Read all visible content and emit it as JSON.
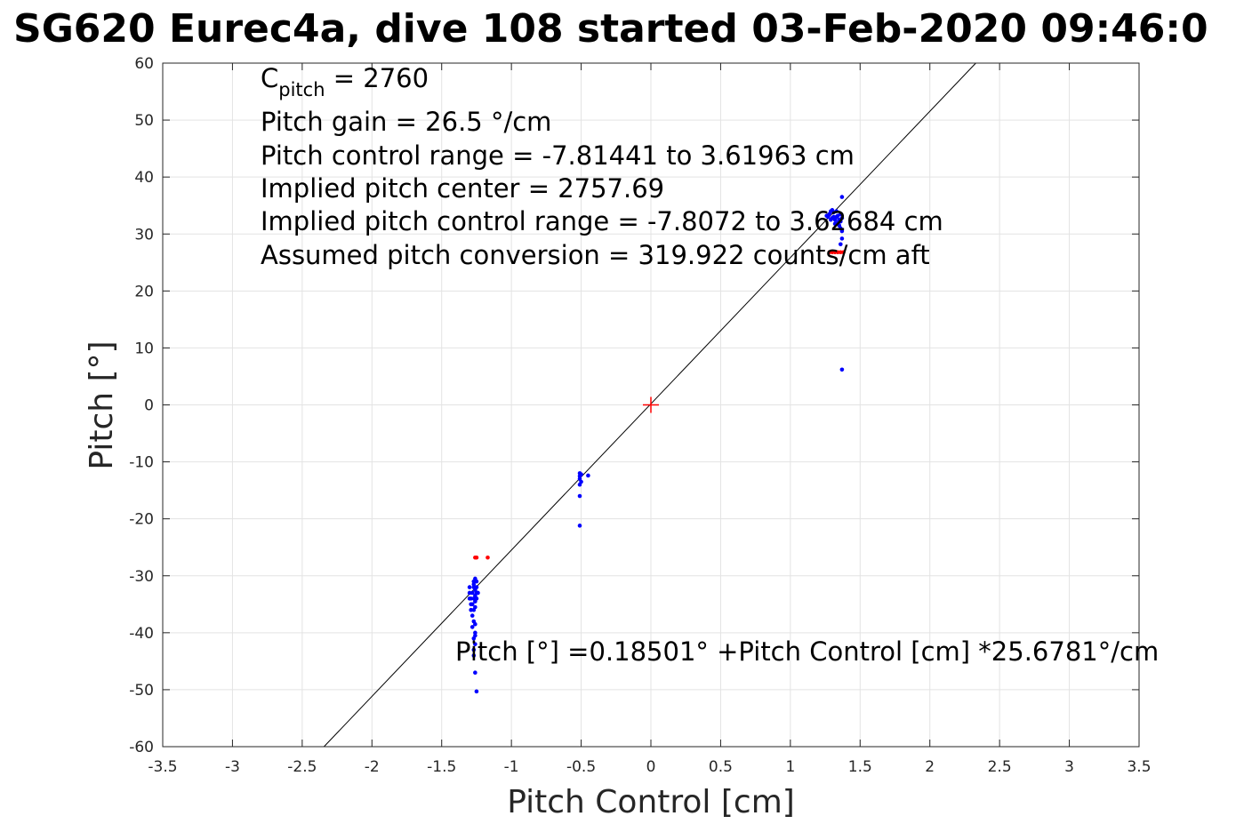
{
  "chart_data": {
    "type": "scatter",
    "title": "SG620 Eurec4a, dive 108 started 03-Feb-2020 09:46:0",
    "xlabel": "Pitch Control [cm]",
    "ylabel": "Pitch [°]",
    "xlim": [
      -3.5,
      3.5
    ],
    "ylim": [
      -60,
      60
    ],
    "xticks": [
      -3.5,
      -3,
      -2.5,
      -2,
      -1.5,
      -1,
      -0.5,
      0,
      0.5,
      1,
      1.5,
      2,
      2.5,
      3,
      3.5
    ],
    "yticks": [
      -60,
      -50,
      -40,
      -30,
      -20,
      -10,
      0,
      10,
      20,
      30,
      40,
      50,
      60
    ],
    "xtick_labels": [
      "-3.5",
      "-3",
      "-2.5",
      "-2",
      "-1.5",
      "-1",
      "-0.5",
      "0",
      "0.5",
      "1",
      "1.5",
      "2",
      "2.5",
      "3",
      "3.5"
    ],
    "ytick_labels": [
      "-60",
      "-50",
      "-40",
      "-30",
      "-20",
      "-10",
      "0",
      "10",
      "20",
      "30",
      "40",
      "50",
      "60"
    ],
    "grid": true,
    "annotations": {
      "c_pitch": {
        "prefix": "C",
        "subscript": "pitch",
        "suffix": " = 2760"
      },
      "lines": [
        "Pitch gain = 26.5 °/cm",
        "Pitch control range = -7.81441 to 3.61963 cm",
        "Implied pitch center = 2757.69",
        "Implied pitch control range = -7.8072 to 3.62684 cm",
        "Assumed pitch conversion = 319.922 counts/cm aft"
      ],
      "fit_equation": "Pitch [°] =0.18501° +Pitch Control [cm] *25.6781°/cm"
    },
    "fit_line": {
      "intercept": 0.18501,
      "slope": 25.6781,
      "color": "#000000"
    },
    "center_marker": {
      "x": 0,
      "y": 0,
      "color": "#ff0000",
      "symbol": "+"
    },
    "series": [
      {
        "color": "#0000ff",
        "points": [
          [
            -1.27,
            -31
          ],
          [
            -1.27,
            -32
          ],
          [
            -1.28,
            -33
          ],
          [
            -1.27,
            -34
          ],
          [
            -1.28,
            -35
          ],
          [
            -1.27,
            -36
          ],
          [
            -1.28,
            -37
          ],
          [
            -1.27,
            -31.5
          ],
          [
            -1.26,
            -32.5
          ],
          [
            -1.26,
            -33.5
          ],
          [
            -1.26,
            -34.5
          ],
          [
            -1.26,
            -35.5
          ],
          [
            -1.25,
            -32
          ],
          [
            -1.25,
            -33
          ],
          [
            -1.25,
            -34
          ],
          [
            -1.29,
            -34
          ],
          [
            -1.29,
            -35
          ],
          [
            -1.29,
            -36
          ],
          [
            -1.3,
            -32
          ],
          [
            -1.3,
            -33
          ],
          [
            -1.3,
            -34
          ],
          [
            -1.27,
            -38
          ],
          [
            -1.26,
            -38.5
          ],
          [
            -1.28,
            -39
          ],
          [
            -1.26,
            -40
          ],
          [
            -1.27,
            -41
          ],
          [
            -1.26,
            -42
          ],
          [
            -1.27,
            -43
          ],
          [
            -1.26,
            -40.5
          ],
          [
            -1.27,
            -44
          ],
          [
            -1.26,
            -47
          ],
          [
            -1.25,
            -50.3
          ],
          [
            -1.26,
            -30.5
          ],
          [
            -1.25,
            -31
          ],
          [
            -1.24,
            -33
          ],
          [
            -0.51,
            -12
          ],
          [
            -0.51,
            -12.5
          ],
          [
            -0.51,
            -13
          ],
          [
            -0.5,
            -13.5
          ],
          [
            -0.51,
            -14
          ],
          [
            -0.5,
            -12.2
          ],
          [
            -0.45,
            -12.4
          ],
          [
            -0.51,
            -16
          ],
          [
            -0.51,
            -21.2
          ],
          [
            1.27,
            33
          ],
          [
            1.28,
            33.5
          ],
          [
            1.29,
            34
          ],
          [
            1.3,
            34.2
          ],
          [
            1.31,
            33
          ],
          [
            1.32,
            32.5
          ],
          [
            1.33,
            33
          ],
          [
            1.34,
            32
          ],
          [
            1.35,
            31.5
          ],
          [
            1.36,
            31
          ],
          [
            1.37,
            30.5
          ],
          [
            1.29,
            32.5
          ],
          [
            1.3,
            32.8
          ],
          [
            1.31,
            33.8
          ],
          [
            1.33,
            34
          ],
          [
            1.34,
            33.2
          ],
          [
            1.35,
            32.5
          ],
          [
            1.36,
            32.2
          ],
          [
            1.37,
            32.8
          ],
          [
            1.26,
            33.2
          ],
          [
            1.32,
            31.8
          ],
          [
            1.36,
            33.5
          ],
          [
            1.37,
            36.5
          ],
          [
            1.37,
            29.2
          ],
          [
            1.36,
            28.2
          ],
          [
            1.37,
            6.2
          ]
        ]
      },
      {
        "color": "#ff0000",
        "points": [
          [
            -1.26,
            -26.8
          ],
          [
            -1.25,
            -26.8
          ],
          [
            -1.17,
            -26.8
          ],
          [
            1.28,
            26.8
          ],
          [
            1.3,
            26.8
          ],
          [
            1.32,
            26.8
          ],
          [
            1.34,
            26.8
          ],
          [
            1.36,
            26.8
          ],
          [
            1.38,
            26.8
          ]
        ]
      }
    ]
  }
}
